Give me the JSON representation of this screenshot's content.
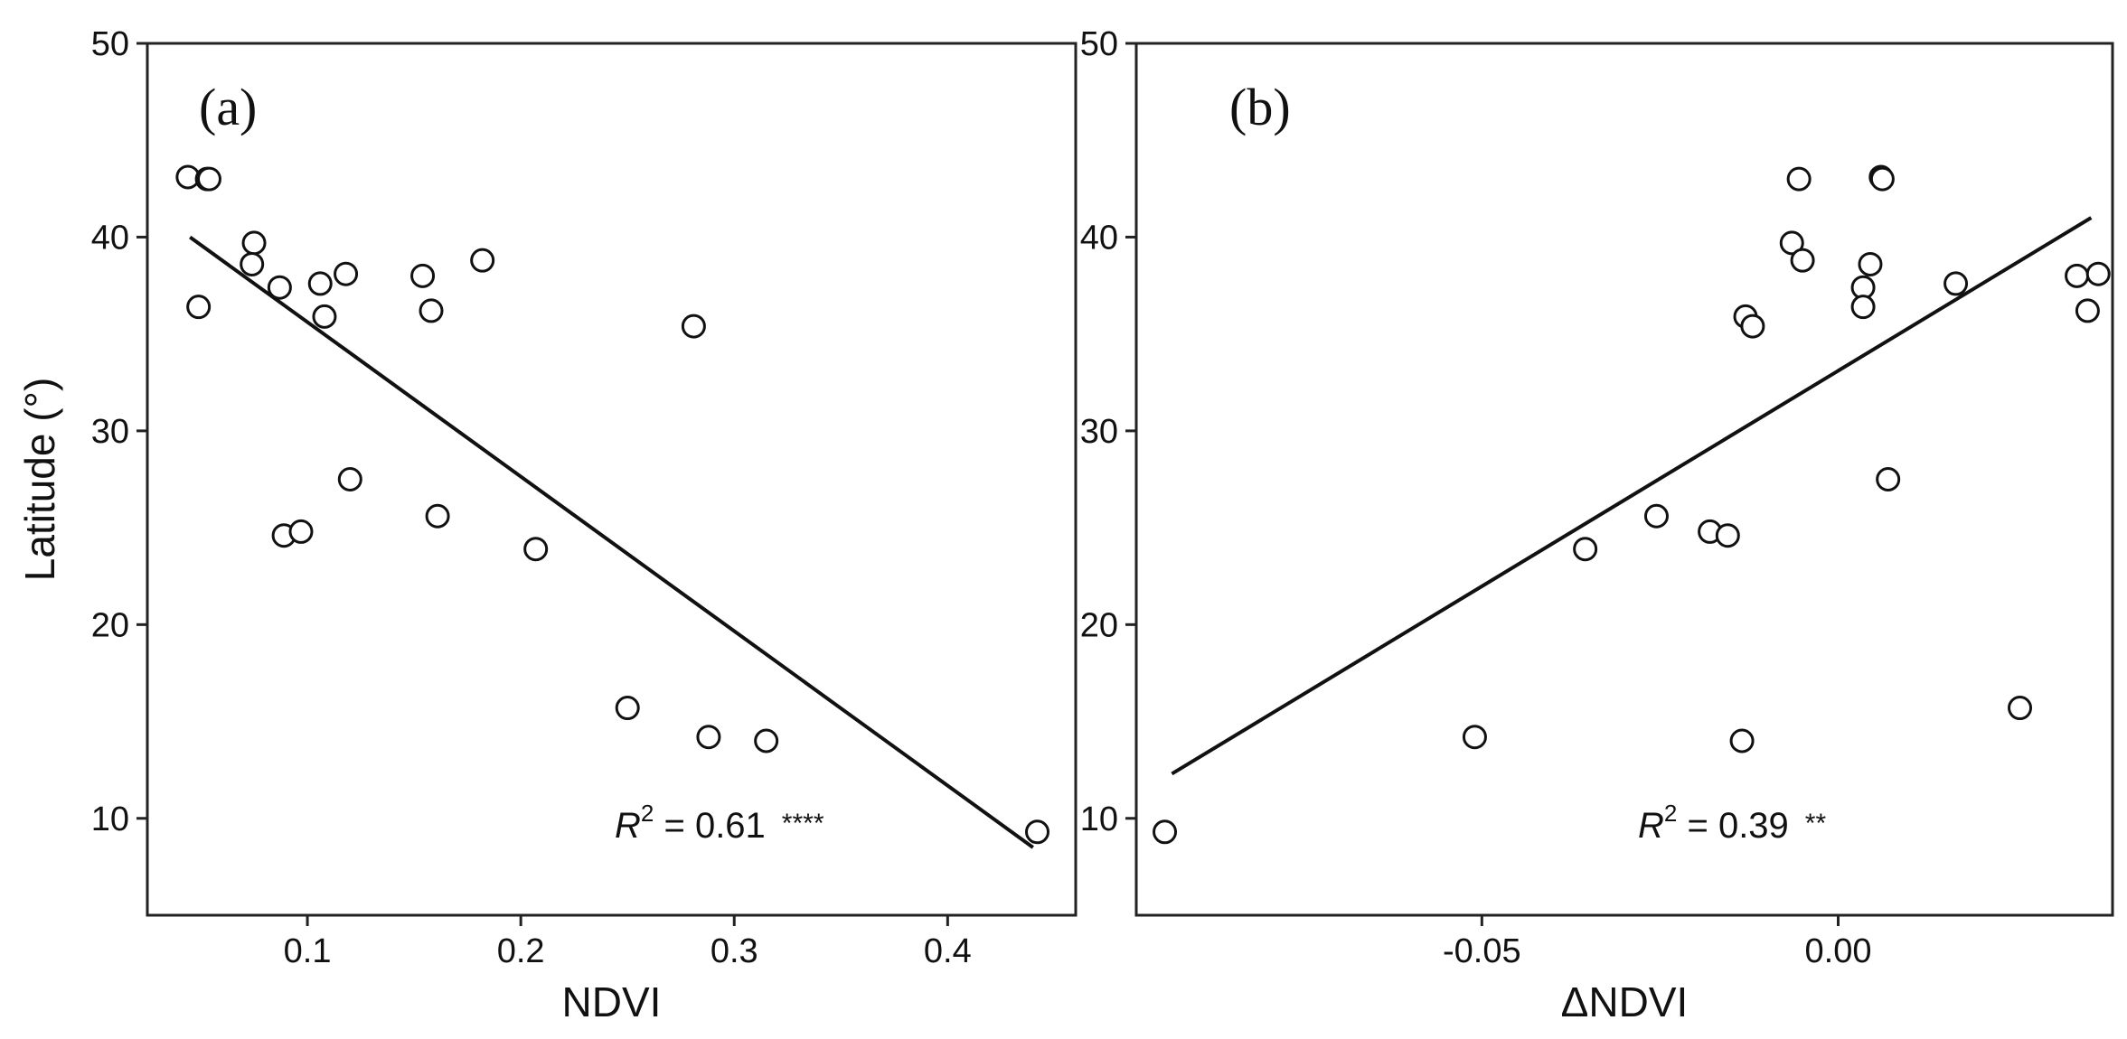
{
  "chart_data": [
    {
      "type": "scatter",
      "panel_label": "(a)",
      "xlabel": "NDVI",
      "ylabel": "Latitude (°)",
      "xlim": [
        0.025,
        0.46
      ],
      "ylim": [
        5,
        50
      ],
      "xticks": [
        0.1,
        0.2,
        0.3,
        0.4
      ],
      "xtick_labels": [
        "0.1",
        "0.2",
        "0.3",
        "0.4"
      ],
      "yticks": [
        10,
        20,
        30,
        40,
        50
      ],
      "ytick_labels": [
        "10",
        "20",
        "30",
        "40",
        "50"
      ],
      "grid": false,
      "points": [
        {
          "x": 0.044,
          "y": 43.1
        },
        {
          "x": 0.053,
          "y": 43.0
        },
        {
          "x": 0.054,
          "y": 43.0
        },
        {
          "x": 0.049,
          "y": 36.4
        },
        {
          "x": 0.075,
          "y": 39.7
        },
        {
          "x": 0.074,
          "y": 38.6
        },
        {
          "x": 0.087,
          "y": 37.4
        },
        {
          "x": 0.106,
          "y": 37.6
        },
        {
          "x": 0.118,
          "y": 38.1
        },
        {
          "x": 0.108,
          "y": 35.9
        },
        {
          "x": 0.154,
          "y": 38.0
        },
        {
          "x": 0.182,
          "y": 38.8
        },
        {
          "x": 0.158,
          "y": 36.2
        },
        {
          "x": 0.281,
          "y": 35.4
        },
        {
          "x": 0.12,
          "y": 27.5
        },
        {
          "x": 0.089,
          "y": 24.6
        },
        {
          "x": 0.097,
          "y": 24.8
        },
        {
          "x": 0.161,
          "y": 25.6
        },
        {
          "x": 0.207,
          "y": 23.9
        },
        {
          "x": 0.25,
          "y": 15.7
        },
        {
          "x": 0.288,
          "y": 14.2
        },
        {
          "x": 0.315,
          "y": 14.0
        },
        {
          "x": 0.442,
          "y": 9.3
        }
      ],
      "fit_line": {
        "x": [
          0.045,
          0.44
        ],
        "y": [
          40.0,
          8.5
        ]
      },
      "annotation": {
        "prefix": "R",
        "sup": "2",
        "rest": " = 0.61",
        "stars": "****"
      }
    },
    {
      "type": "scatter",
      "panel_label": "(b)",
      "xlabel": "ΔNDVI",
      "ylabel": "",
      "xlim": [
        -0.0985,
        0.0385
      ],
      "ylim": [
        5,
        50
      ],
      "xticks": [
        -0.05,
        0.0
      ],
      "xtick_labels": [
        "-0.05",
        "0.00"
      ],
      "yticks": [
        10,
        20,
        30,
        40,
        50
      ],
      "ytick_labels": [
        "10",
        "20",
        "30",
        "40",
        "50"
      ],
      "grid": false,
      "points": [
        {
          "x": -0.0945,
          "y": 9.3
        },
        {
          "x": -0.051,
          "y": 14.2
        },
        {
          "x": -0.0355,
          "y": 23.9
        },
        {
          "x": -0.0255,
          "y": 25.6
        },
        {
          "x": -0.018,
          "y": 24.8
        },
        {
          "x": -0.0155,
          "y": 24.6
        },
        {
          "x": -0.0135,
          "y": 14.0
        },
        {
          "x": -0.013,
          "y": 35.9
        },
        {
          "x": -0.012,
          "y": 35.4
        },
        {
          "x": -0.0065,
          "y": 39.7
        },
        {
          "x": -0.0055,
          "y": 43.0
        },
        {
          "x": -0.005,
          "y": 38.8
        },
        {
          "x": 0.0035,
          "y": 37.4
        },
        {
          "x": 0.0035,
          "y": 36.4
        },
        {
          "x": 0.0045,
          "y": 38.6
        },
        {
          "x": 0.006,
          "y": 43.1
        },
        {
          "x": 0.0062,
          "y": 43.0
        },
        {
          "x": 0.007,
          "y": 27.5
        },
        {
          "x": 0.0165,
          "y": 37.6
        },
        {
          "x": 0.0255,
          "y": 15.7
        },
        {
          "x": 0.0335,
          "y": 38.0
        },
        {
          "x": 0.035,
          "y": 36.2
        },
        {
          "x": 0.0365,
          "y": 38.1
        }
      ],
      "fit_line": {
        "x": [
          -0.0935,
          0.0355
        ],
        "y": [
          12.3,
          41.0
        ]
      },
      "annotation": {
        "prefix": "R",
        "sup": "2",
        "rest": " = 0.39",
        "stars": "**"
      }
    }
  ]
}
